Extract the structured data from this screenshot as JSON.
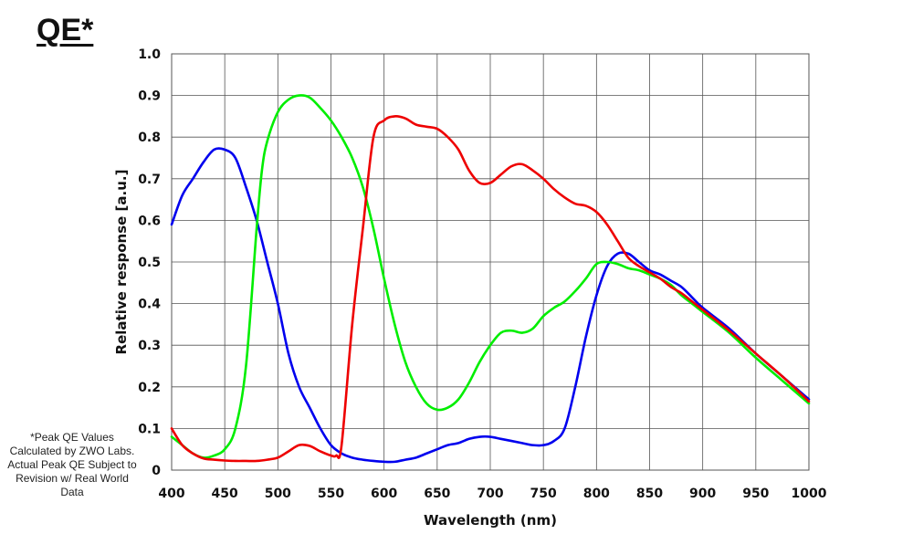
{
  "title": "QE*",
  "footnote": "*Peak QE Values Calculated by ZWO Labs. Actual Peak QE Subject to Revision w/ Real World Data",
  "chart_data": {
    "type": "line",
    "xlabel": "Wavelength (nm)",
    "ylabel": "Relative response [a.u.]",
    "xlim": [
      400,
      1000
    ],
    "ylim": [
      0,
      1.0
    ],
    "x_ticks": [
      "400",
      "450",
      "500",
      "550",
      "600",
      "650",
      "700",
      "750",
      "800",
      "850",
      "900",
      "950",
      "1000"
    ],
    "y_ticks": [
      "0",
      "0.1",
      "0.2",
      "0.3",
      "0.4",
      "0.5",
      "0.6",
      "0.7",
      "0.8",
      "0.9",
      "1.0"
    ],
    "grid": true,
    "series": [
      {
        "color": "#0000ee",
        "points": [
          [
            400,
            0.59
          ],
          [
            410,
            0.66
          ],
          [
            420,
            0.7
          ],
          [
            430,
            0.74
          ],
          [
            440,
            0.77
          ],
          [
            450,
            0.77
          ],
          [
            460,
            0.75
          ],
          [
            470,
            0.68
          ],
          [
            480,
            0.6
          ],
          [
            490,
            0.5
          ],
          [
            500,
            0.4
          ],
          [
            510,
            0.28
          ],
          [
            520,
            0.2
          ],
          [
            530,
            0.15
          ],
          [
            540,
            0.1
          ],
          [
            550,
            0.06
          ],
          [
            560,
            0.04
          ],
          [
            570,
            0.03
          ],
          [
            580,
            0.025
          ],
          [
            590,
            0.022
          ],
          [
            600,
            0.02
          ],
          [
            610,
            0.02
          ],
          [
            620,
            0.025
          ],
          [
            630,
            0.03
          ],
          [
            640,
            0.04
          ],
          [
            650,
            0.05
          ],
          [
            660,
            0.06
          ],
          [
            670,
            0.065
          ],
          [
            680,
            0.075
          ],
          [
            690,
            0.08
          ],
          [
            700,
            0.08
          ],
          [
            710,
            0.075
          ],
          [
            720,
            0.07
          ],
          [
            730,
            0.065
          ],
          [
            740,
            0.06
          ],
          [
            750,
            0.06
          ],
          [
            760,
            0.07
          ],
          [
            770,
            0.1
          ],
          [
            780,
            0.2
          ],
          [
            790,
            0.32
          ],
          [
            800,
            0.42
          ],
          [
            810,
            0.49
          ],
          [
            820,
            0.52
          ],
          [
            830,
            0.52
          ],
          [
            840,
            0.5
          ],
          [
            850,
            0.48
          ],
          [
            860,
            0.47
          ],
          [
            870,
            0.455
          ],
          [
            880,
            0.44
          ],
          [
            890,
            0.415
          ],
          [
            900,
            0.39
          ],
          [
            925,
            0.34
          ],
          [
            950,
            0.28
          ],
          [
            975,
            0.225
          ],
          [
            1000,
            0.17
          ]
        ]
      },
      {
        "color": "#00ee00",
        "points": [
          [
            400,
            0.08
          ],
          [
            410,
            0.06
          ],
          [
            420,
            0.04
          ],
          [
            430,
            0.03
          ],
          [
            440,
            0.035
          ],
          [
            450,
            0.05
          ],
          [
            460,
            0.1
          ],
          [
            470,
            0.25
          ],
          [
            480,
            0.58
          ],
          [
            485,
            0.72
          ],
          [
            490,
            0.79
          ],
          [
            500,
            0.86
          ],
          [
            510,
            0.89
          ],
          [
            520,
            0.9
          ],
          [
            530,
            0.895
          ],
          [
            540,
            0.87
          ],
          [
            550,
            0.84
          ],
          [
            560,
            0.8
          ],
          [
            570,
            0.75
          ],
          [
            580,
            0.68
          ],
          [
            590,
            0.58
          ],
          [
            600,
            0.46
          ],
          [
            610,
            0.35
          ],
          [
            620,
            0.26
          ],
          [
            630,
            0.2
          ],
          [
            640,
            0.16
          ],
          [
            650,
            0.145
          ],
          [
            660,
            0.15
          ],
          [
            670,
            0.17
          ],
          [
            680,
            0.21
          ],
          [
            690,
            0.26
          ],
          [
            700,
            0.3
          ],
          [
            710,
            0.33
          ],
          [
            720,
            0.335
          ],
          [
            730,
            0.33
          ],
          [
            740,
            0.34
          ],
          [
            750,
            0.37
          ],
          [
            760,
            0.39
          ],
          [
            770,
            0.405
          ],
          [
            780,
            0.43
          ],
          [
            790,
            0.46
          ],
          [
            800,
            0.495
          ],
          [
            810,
            0.5
          ],
          [
            820,
            0.495
          ],
          [
            830,
            0.485
          ],
          [
            840,
            0.48
          ],
          [
            850,
            0.47
          ],
          [
            860,
            0.46
          ],
          [
            870,
            0.445
          ],
          [
            880,
            0.42
          ],
          [
            890,
            0.4
          ],
          [
            900,
            0.38
          ],
          [
            925,
            0.33
          ],
          [
            950,
            0.27
          ],
          [
            975,
            0.215
          ],
          [
            1000,
            0.16
          ]
        ]
      },
      {
        "color": "#ee0000",
        "points": [
          [
            400,
            0.1
          ],
          [
            410,
            0.06
          ],
          [
            420,
            0.04
          ],
          [
            430,
            0.028
          ],
          [
            440,
            0.025
          ],
          [
            450,
            0.023
          ],
          [
            460,
            0.022
          ],
          [
            470,
            0.022
          ],
          [
            480,
            0.022
          ],
          [
            490,
            0.025
          ],
          [
            500,
            0.03
          ],
          [
            510,
            0.045
          ],
          [
            520,
            0.06
          ],
          [
            530,
            0.058
          ],
          [
            540,
            0.045
          ],
          [
            550,
            0.035
          ],
          [
            555,
            0.035
          ],
          [
            560,
            0.06
          ],
          [
            570,
            0.35
          ],
          [
            580,
            0.58
          ],
          [
            590,
            0.8
          ],
          [
            600,
            0.84
          ],
          [
            610,
            0.85
          ],
          [
            620,
            0.845
          ],
          [
            630,
            0.83
          ],
          [
            640,
            0.825
          ],
          [
            650,
            0.82
          ],
          [
            660,
            0.8
          ],
          [
            670,
            0.77
          ],
          [
            680,
            0.72
          ],
          [
            690,
            0.69
          ],
          [
            700,
            0.69
          ],
          [
            710,
            0.71
          ],
          [
            720,
            0.73
          ],
          [
            730,
            0.735
          ],
          [
            740,
            0.72
          ],
          [
            750,
            0.7
          ],
          [
            760,
            0.675
          ],
          [
            770,
            0.655
          ],
          [
            780,
            0.64
          ],
          [
            790,
            0.635
          ],
          [
            800,
            0.62
          ],
          [
            810,
            0.59
          ],
          [
            820,
            0.55
          ],
          [
            830,
            0.51
          ],
          [
            840,
            0.49
          ],
          [
            850,
            0.475
          ],
          [
            860,
            0.46
          ],
          [
            870,
            0.44
          ],
          [
            880,
            0.425
          ],
          [
            890,
            0.405
          ],
          [
            900,
            0.385
          ],
          [
            925,
            0.335
          ],
          [
            950,
            0.28
          ],
          [
            975,
            0.225
          ],
          [
            1000,
            0.165
          ]
        ]
      }
    ]
  }
}
